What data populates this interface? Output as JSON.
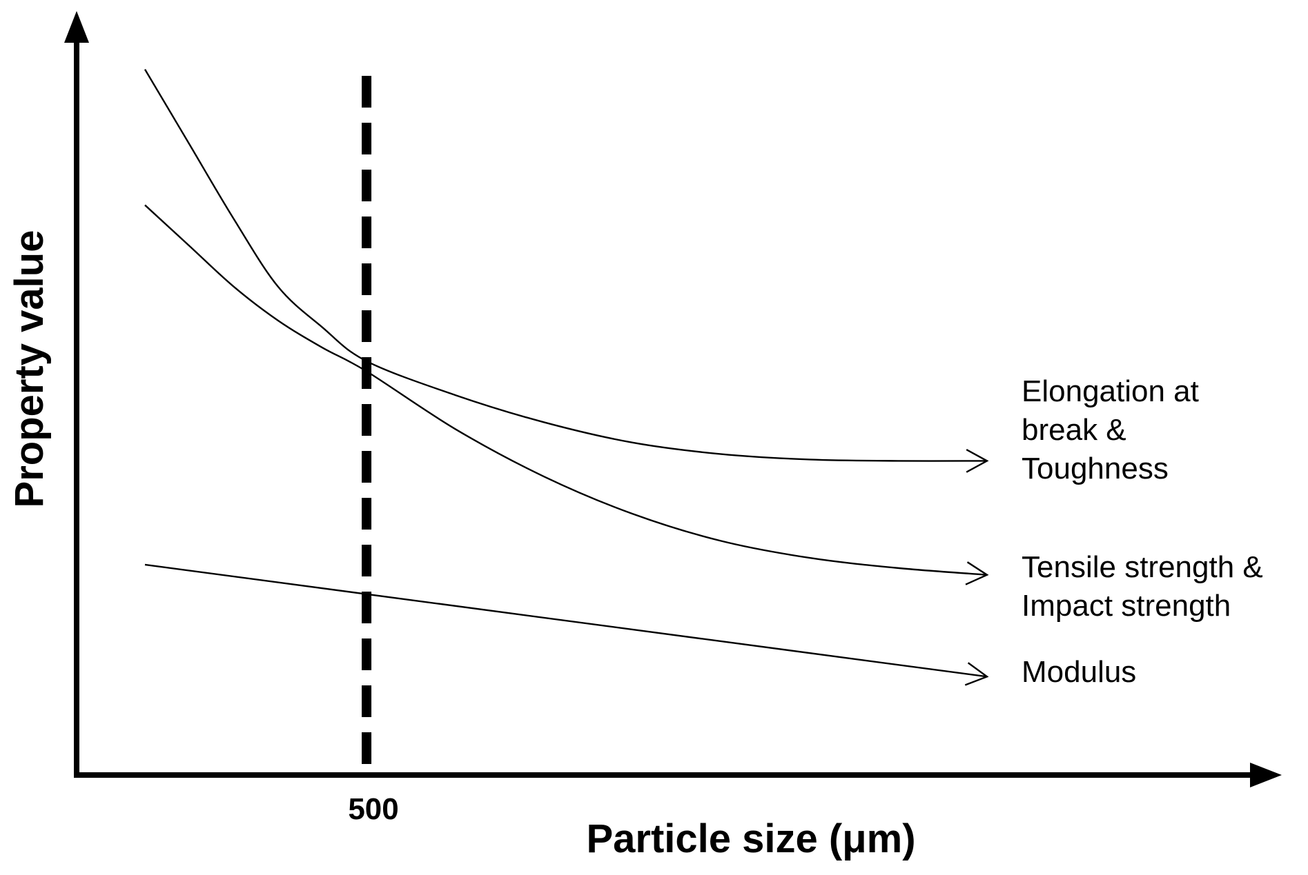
{
  "chart_data": {
    "type": "line",
    "xlabel": "Particle size (μm)",
    "ylabel": "Property value",
    "xlim": [
      0,
      1900
    ],
    "ylim": [
      0,
      100
    ],
    "x_ticks": [
      500
    ],
    "reference_line": {
      "x": 500,
      "style": "dashed"
    },
    "grid": false,
    "series": [
      {
        "label_lines": [
          "Elongation at",
          "break &",
          "Toughness"
        ],
        "x": [
          0,
          100,
          200,
          300,
          400,
          500,
          700,
          900,
          1100,
          1300,
          1500,
          1700,
          1900
        ],
        "y": [
          104,
          93,
          82,
          72,
          66,
          61,
          56,
          52,
          49,
          47.3,
          46.5,
          46.3,
          46.3
        ]
      },
      {
        "label_lines": [
          "Tensile strength &",
          "Impact strength"
        ],
        "x": [
          0,
          100,
          200,
          300,
          400,
          500,
          700,
          900,
          1100,
          1300,
          1500,
          1700,
          1900
        ],
        "y": [
          84,
          78,
          72,
          67,
          63,
          59.5,
          51,
          44,
          38.5,
          34.5,
          32,
          30.5,
          29.5
        ]
      },
      {
        "label_lines": [
          "Modulus"
        ],
        "x": [
          0,
          1900
        ],
        "y": [
          31,
          14.5
        ]
      }
    ]
  }
}
